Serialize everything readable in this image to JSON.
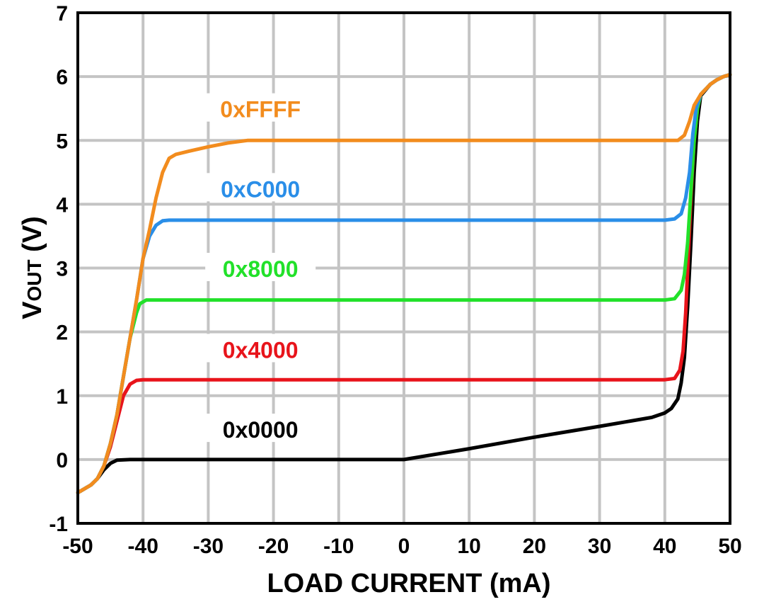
{
  "chart_data": {
    "type": "line",
    "title": "",
    "xlabel": "LOAD CURRENT (mA)",
    "ylabel_main": "V",
    "ylabel_sub": "OUT",
    "ylabel_unit": " (V)",
    "xlim": [
      -50,
      50
    ],
    "ylim": [
      -1,
      7
    ],
    "xticks": [
      "-50",
      "-40",
      "-30",
      "-20",
      "-10",
      "0",
      "10",
      "20",
      "30",
      "40",
      "50"
    ],
    "yticks": [
      "-1",
      "0",
      "1",
      "2",
      "3",
      "4",
      "5",
      "6",
      "7"
    ],
    "grid": true,
    "series": [
      {
        "name": "0x0000",
        "color": "#000000",
        "points": [
          [
            -50,
            -0.52
          ],
          [
            -48,
            -0.4
          ],
          [
            -47,
            -0.3
          ],
          [
            -46,
            -0.16
          ],
          [
            -45,
            -0.06
          ],
          [
            -44,
            -0.01
          ],
          [
            -42,
            0
          ],
          [
            -30,
            0
          ],
          [
            -10,
            0
          ],
          [
            0,
            0
          ],
          [
            10,
            0.17
          ],
          [
            20,
            0.35
          ],
          [
            30,
            0.52
          ],
          [
            38,
            0.66
          ],
          [
            40,
            0.73
          ],
          [
            41,
            0.8
          ],
          [
            42,
            0.95
          ],
          [
            42.5,
            1.2
          ],
          [
            43,
            1.6
          ],
          [
            43.5,
            2.4
          ],
          [
            44,
            3.4
          ],
          [
            44.5,
            4.5
          ],
          [
            45,
            5.3
          ],
          [
            45.5,
            5.7
          ],
          [
            47,
            5.88
          ],
          [
            48,
            5.95
          ],
          [
            49,
            6.0
          ],
          [
            50,
            6.03
          ]
        ]
      },
      {
        "name": "0x4000",
        "color": "#e8141b",
        "points": [
          [
            -50,
            -0.52
          ],
          [
            -48,
            -0.4
          ],
          [
            -47,
            -0.3
          ],
          [
            -46,
            -0.1
          ],
          [
            -45,
            0.2
          ],
          [
            -44,
            0.6
          ],
          [
            -43,
            1.0
          ],
          [
            -42,
            1.18
          ],
          [
            -41,
            1.24
          ],
          [
            -40,
            1.25
          ],
          [
            0,
            1.25
          ],
          [
            40,
            1.25
          ],
          [
            41.5,
            1.27
          ],
          [
            42.3,
            1.4
          ],
          [
            42.8,
            1.7
          ],
          [
            43.2,
            2.3
          ],
          [
            43.6,
            3.2
          ],
          [
            44,
            4.1
          ],
          [
            44.5,
            5.0
          ],
          [
            45,
            5.5
          ],
          [
            45.5,
            5.72
          ],
          [
            47,
            5.88
          ],
          [
            48,
            5.95
          ],
          [
            49,
            6.0
          ],
          [
            50,
            6.03
          ]
        ]
      },
      {
        "name": "0x8000",
        "color": "#22e12a",
        "points": [
          [
            -50,
            -0.52
          ],
          [
            -48,
            -0.4
          ],
          [
            -47,
            -0.3
          ],
          [
            -46,
            -0.1
          ],
          [
            -45,
            0.25
          ],
          [
            -44,
            0.7
          ],
          [
            -43,
            1.3
          ],
          [
            -42,
            1.9
          ],
          [
            -41,
            2.3
          ],
          [
            -40.5,
            2.44
          ],
          [
            -39.5,
            2.5
          ],
          [
            0,
            2.5
          ],
          [
            40,
            2.5
          ],
          [
            41.5,
            2.52
          ],
          [
            42.5,
            2.65
          ],
          [
            43,
            2.9
          ],
          [
            43.5,
            3.4
          ],
          [
            44,
            4.2
          ],
          [
            44.5,
            5.0
          ],
          [
            45,
            5.5
          ],
          [
            45.5,
            5.72
          ],
          [
            47,
            5.88
          ],
          [
            48,
            5.95
          ],
          [
            49,
            6.0
          ],
          [
            50,
            6.03
          ]
        ]
      },
      {
        "name": "0xC000",
        "color": "#2a8ee8",
        "points": [
          [
            -50,
            -0.52
          ],
          [
            -48,
            -0.4
          ],
          [
            -47,
            -0.3
          ],
          [
            -46,
            -0.1
          ],
          [
            -45,
            0.25
          ],
          [
            -44,
            0.7
          ],
          [
            -43,
            1.3
          ],
          [
            -42,
            1.9
          ],
          [
            -41,
            2.5
          ],
          [
            -40,
            3.15
          ],
          [
            -39,
            3.5
          ],
          [
            -38,
            3.67
          ],
          [
            -37,
            3.74
          ],
          [
            -36,
            3.75
          ],
          [
            0,
            3.75
          ],
          [
            40,
            3.75
          ],
          [
            41.5,
            3.77
          ],
          [
            42.5,
            3.85
          ],
          [
            43.2,
            4.1
          ],
          [
            43.8,
            4.5
          ],
          [
            44.3,
            5.1
          ],
          [
            44.8,
            5.5
          ],
          [
            45.5,
            5.72
          ],
          [
            47,
            5.88
          ],
          [
            48,
            5.95
          ],
          [
            49,
            6.0
          ],
          [
            50,
            6.03
          ]
        ]
      },
      {
        "name": "0xFFFF",
        "color": "#f28c1e",
        "points": [
          [
            -50,
            -0.52
          ],
          [
            -48,
            -0.4
          ],
          [
            -47,
            -0.3
          ],
          [
            -46,
            -0.1
          ],
          [
            -45,
            0.25
          ],
          [
            -44,
            0.7
          ],
          [
            -43,
            1.3
          ],
          [
            -42,
            1.9
          ],
          [
            -41,
            2.5
          ],
          [
            -40,
            3.15
          ],
          [
            -39,
            3.6
          ],
          [
            -38,
            4.1
          ],
          [
            -37,
            4.5
          ],
          [
            -36,
            4.72
          ],
          [
            -35,
            4.78
          ],
          [
            -33,
            4.83
          ],
          [
            -30,
            4.9
          ],
          [
            -27,
            4.96
          ],
          [
            -24,
            5.0
          ],
          [
            0,
            5.0
          ],
          [
            40,
            5.0
          ],
          [
            42,
            5.0
          ],
          [
            43,
            5.08
          ],
          [
            43.8,
            5.3
          ],
          [
            44.5,
            5.55
          ],
          [
            45.5,
            5.72
          ],
          [
            47,
            5.88
          ],
          [
            48,
            5.95
          ],
          [
            49,
            6.0
          ],
          [
            50,
            6.03
          ]
        ]
      }
    ],
    "labels": [
      {
        "text": "0xFFFF",
        "x": -22,
        "y": 5.45,
        "color": "#f28c1e"
      },
      {
        "text": "0xC000",
        "x": -22,
        "y": 4.2,
        "color": "#2a8ee8"
      },
      {
        "text": "0x8000",
        "x": -22,
        "y": 2.95,
        "color": "#22e12a"
      },
      {
        "text": "0x4000",
        "x": -22,
        "y": 1.68,
        "color": "#e8141b"
      },
      {
        "text": "0x0000",
        "x": -22,
        "y": 0.43,
        "color": "#000000"
      }
    ]
  }
}
